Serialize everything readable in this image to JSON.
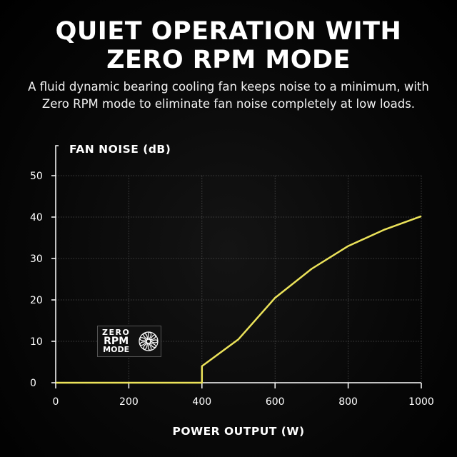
{
  "header": {
    "title_line1": "QUIET OPERATION WITH",
    "title_line2": "ZERO RPM MODE",
    "subtitle_line1": "A fluid dynamic bearing cooling fan keeps noise to a minimum, with",
    "subtitle_line2": "Zero RPM mode to eliminate fan noise completely at low loads."
  },
  "badge": {
    "line1": "ZERO",
    "line2": "RPM",
    "line3": "MODE",
    "icon": "fan-icon"
  },
  "chart_data": {
    "type": "line",
    "title": "",
    "xlabel": "POWER OUTPUT (W)",
    "ylabel": "FAN NOISE (dB)",
    "xlim": [
      0,
      1000
    ],
    "ylim": [
      0,
      50
    ],
    "xticks": [
      0,
      200,
      400,
      600,
      800,
      1000
    ],
    "yticks": [
      0,
      10,
      20,
      30,
      40,
      50
    ],
    "grid": true,
    "line_color": "#ece35a",
    "series": [
      {
        "x": [
          0,
          400,
          400,
          500,
          600,
          700,
          800,
          900,
          1000
        ],
        "y": [
          0,
          0,
          4,
          10.5,
          20.5,
          27.5,
          33,
          37,
          40.2
        ]
      }
    ]
  }
}
